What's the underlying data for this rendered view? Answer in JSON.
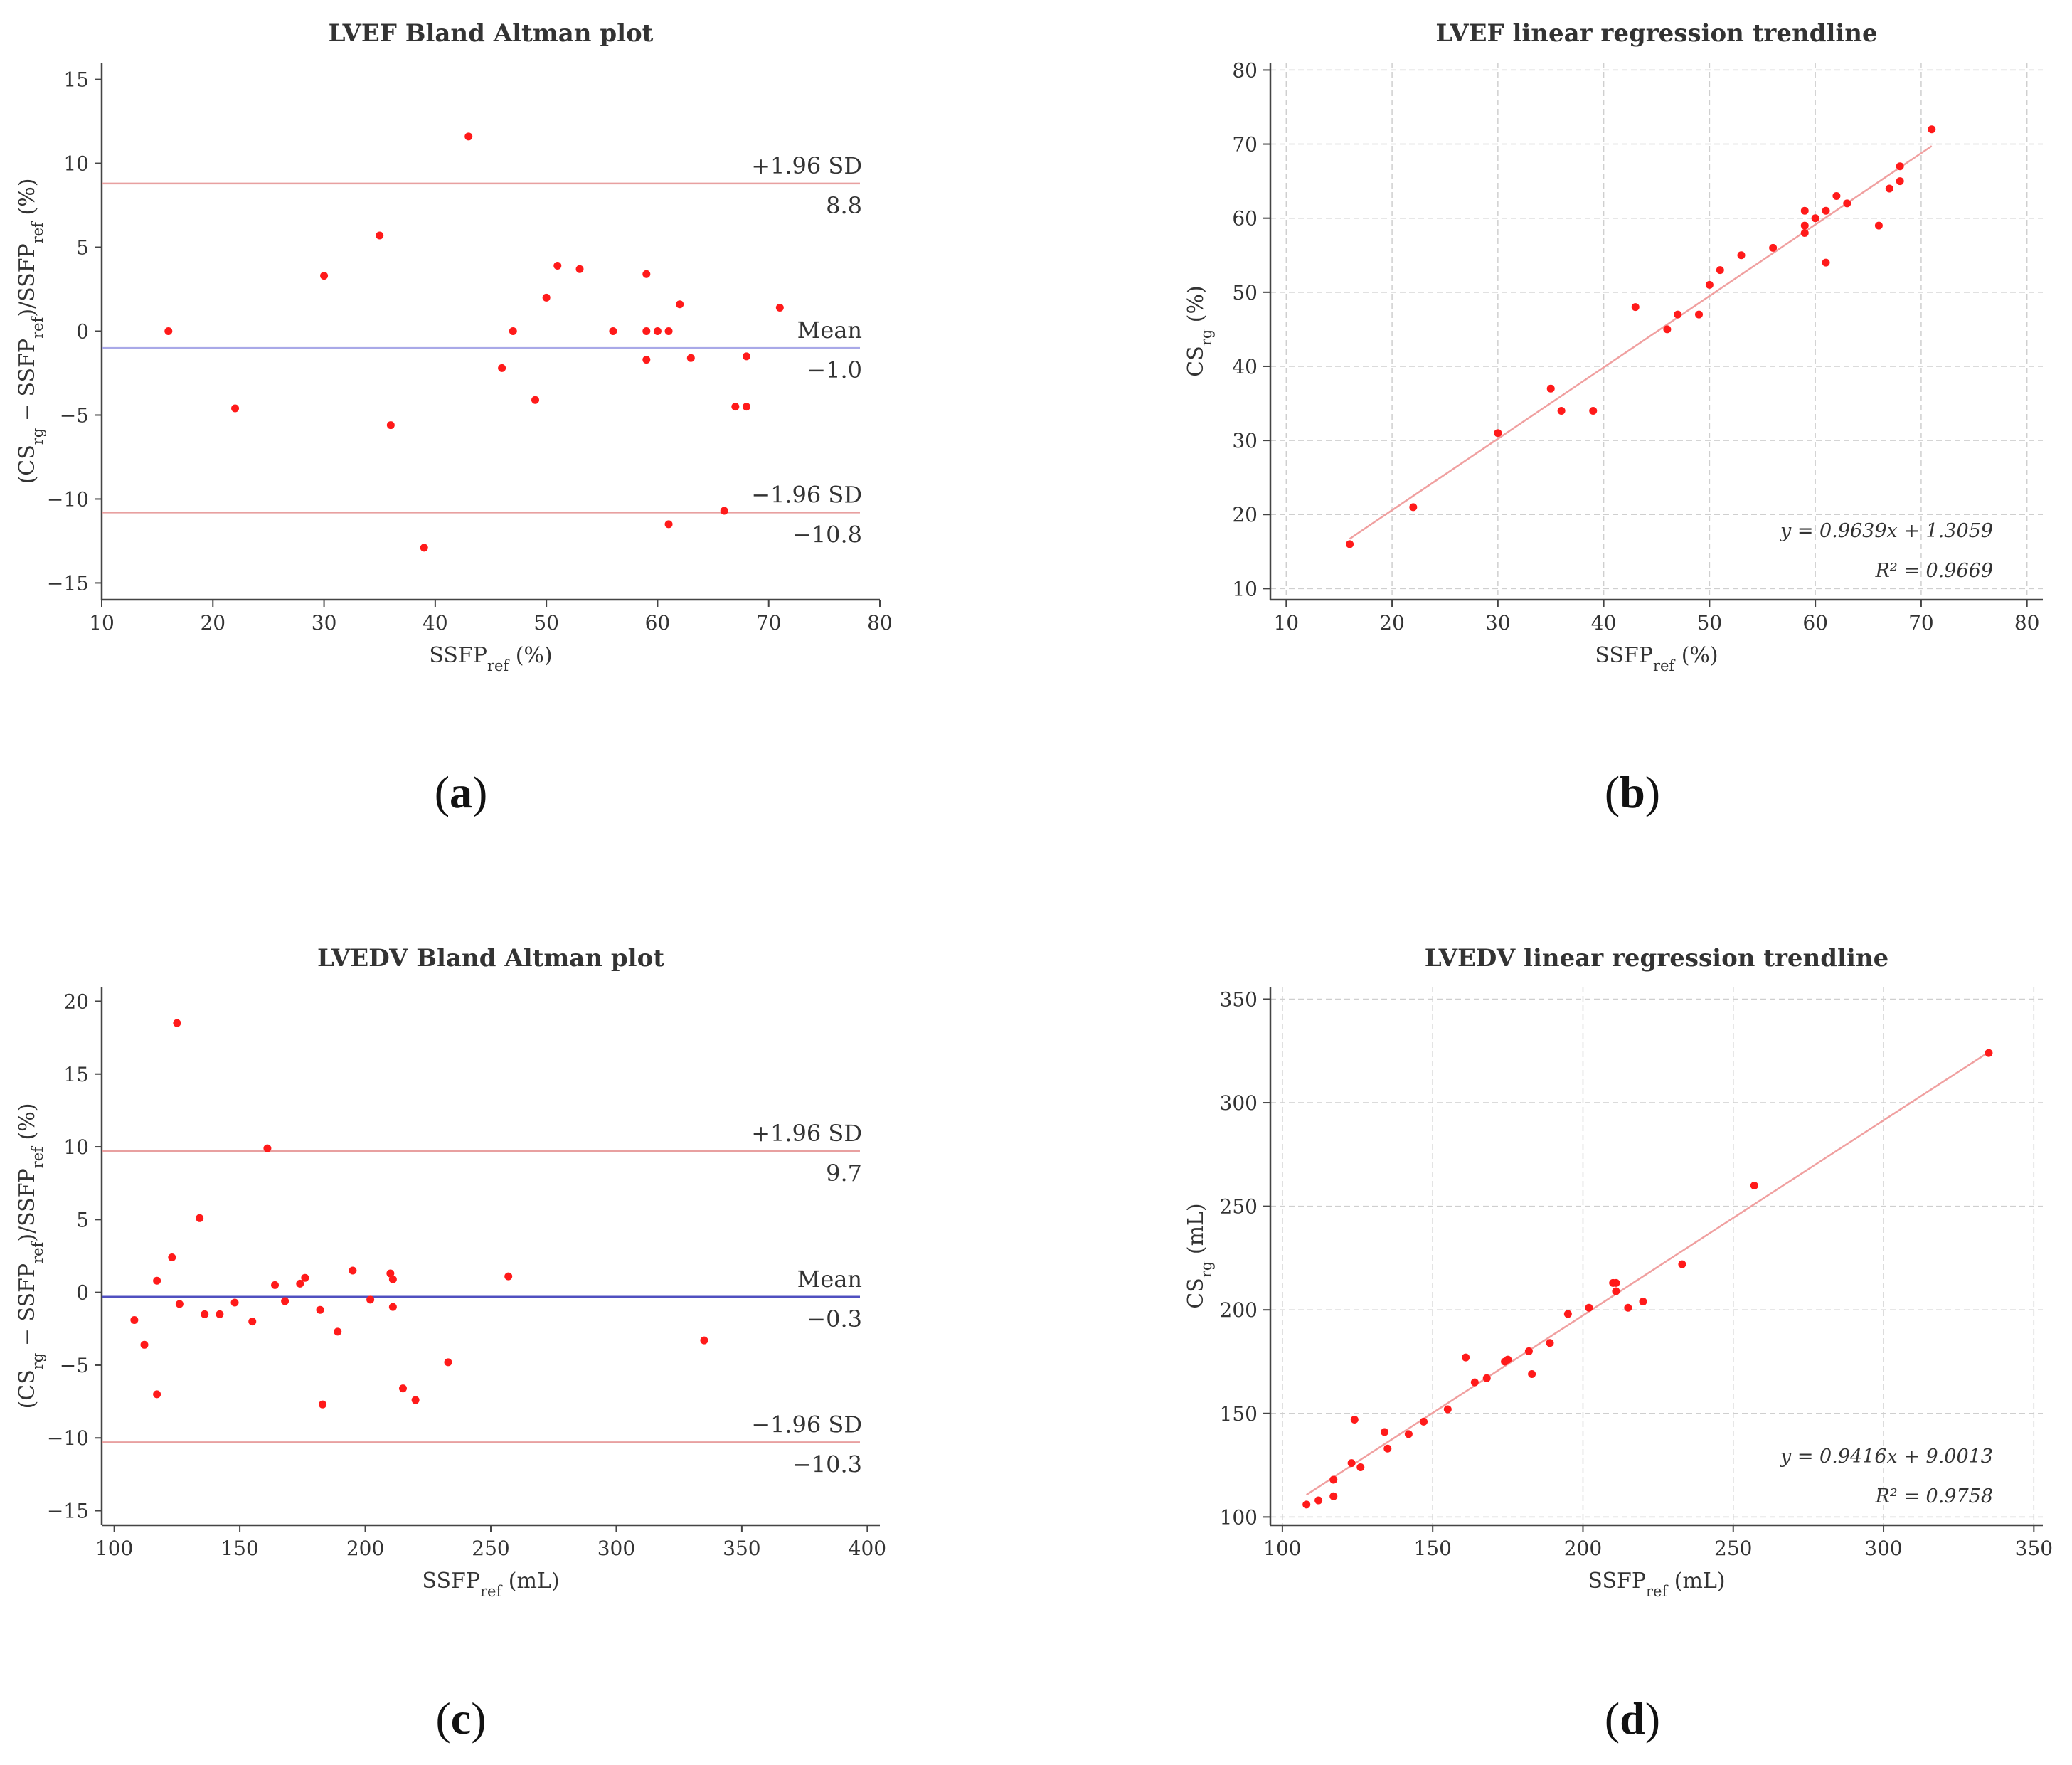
{
  "panel_labels": [
    "(a)",
    "(b)",
    "(c)",
    "(d)"
  ],
  "chart_data": [
    {
      "type": "scatter",
      "title": "LVEF Bland Altman plot",
      "xlabel": "SSFPref (%)",
      "ylabel": "(CSrg − SSFPref)/SSFPref (%)",
      "xlim": [
        10,
        80
      ],
      "ylim": [
        -16,
        16
      ],
      "xticks": [
        10,
        20,
        30,
        40,
        50,
        60,
        70,
        80
      ],
      "yticks": [
        -15,
        -10,
        -5,
        0,
        5,
        10,
        15
      ],
      "grid": false,
      "points": [
        [
          16,
          0
        ],
        [
          22,
          -4.6
        ],
        [
          30,
          3.3
        ],
        [
          35,
          5.7
        ],
        [
          36,
          -5.6
        ],
        [
          39,
          -12.9
        ],
        [
          43,
          11.6
        ],
        [
          46,
          -2.2
        ],
        [
          47,
          0
        ],
        [
          49,
          -4.1
        ],
        [
          50,
          2
        ],
        [
          51,
          3.9
        ],
        [
          53,
          3.7
        ],
        [
          56,
          0
        ],
        [
          59,
          3.4
        ],
        [
          59,
          0
        ],
        [
          59,
          -1.7
        ],
        [
          60,
          0
        ],
        [
          61,
          0
        ],
        [
          61,
          -11.5
        ],
        [
          62,
          1.6
        ],
        [
          63,
          -1.6
        ],
        [
          66,
          -10.7
        ],
        [
          67,
          -4.5
        ],
        [
          68,
          -4.5
        ],
        [
          68,
          -1.5
        ],
        [
          71,
          1.4
        ]
      ],
      "reference_lines": [
        {
          "label": "+1.96 SD",
          "value": 8.8,
          "value_text": "8.8",
          "color": "#e8a0a0"
        },
        {
          "label": "Mean",
          "value": -1.0,
          "value_text": "−1.0",
          "color": "#a9a9e8"
        },
        {
          "label": "−1.96 SD",
          "value": -10.8,
          "value_text": "−10.8",
          "color": "#e8a0a0"
        }
      ]
    },
    {
      "type": "scatter",
      "title": "LVEF linear regression trendline",
      "xlabel": "SSFPref (%)",
      "ylabel": "CSrg (%)",
      "xlim": [
        8.5,
        81.5
      ],
      "ylim": [
        8.5,
        81
      ],
      "xticks": [
        10,
        20,
        30,
        40,
        50,
        60,
        70,
        80
      ],
      "yticks": [
        10,
        20,
        30,
        40,
        50,
        60,
        70,
        80
      ],
      "grid": true,
      "points": [
        [
          16,
          16
        ],
        [
          22,
          21
        ],
        [
          30,
          31
        ],
        [
          35,
          37
        ],
        [
          36,
          34
        ],
        [
          39,
          34
        ],
        [
          43,
          48
        ],
        [
          46,
          45
        ],
        [
          47,
          47
        ],
        [
          49,
          47
        ],
        [
          50,
          51
        ],
        [
          51,
          53
        ],
        [
          53,
          55
        ],
        [
          56,
          56
        ],
        [
          59,
          61
        ],
        [
          59,
          59
        ],
        [
          59,
          58
        ],
        [
          60,
          60
        ],
        [
          61,
          61
        ],
        [
          61,
          54
        ],
        [
          62,
          63
        ],
        [
          63,
          62
        ],
        [
          66,
          59
        ],
        [
          67,
          64
        ],
        [
          68,
          67
        ],
        [
          68,
          65
        ],
        [
          71,
          72
        ]
      ],
      "trendline": {
        "slope": 0.9639,
        "intercept": 1.3059,
        "x_range": [
          16,
          71
        ],
        "color": "#f0a0a0"
      },
      "annotations": [
        "y = 0.9639x + 1.3059",
        "R² = 0.9669"
      ]
    },
    {
      "type": "scatter",
      "title": "LVEDV Bland Altman plot",
      "xlabel": "SSFPref (mL)",
      "ylabel": "(CSrg − SSFPref)/SSFPref (%)",
      "xlim": [
        95,
        405
      ],
      "ylim": [
        -16,
        21
      ],
      "xticks": [
        100,
        150,
        200,
        250,
        300,
        350,
        400
      ],
      "yticks": [
        -15,
        -10,
        -5,
        0,
        5,
        10,
        15,
        20
      ],
      "grid": false,
      "points": [
        [
          108,
          -1.9
        ],
        [
          112,
          -3.6
        ],
        [
          117,
          -7
        ],
        [
          117,
          0.8
        ],
        [
          123,
          2.4
        ],
        [
          125,
          18.5
        ],
        [
          126,
          -0.8
        ],
        [
          134,
          5.1
        ],
        [
          136,
          -1.5
        ],
        [
          142,
          -1.5
        ],
        [
          148,
          -0.7
        ],
        [
          155,
          -2
        ],
        [
          161,
          9.9
        ],
        [
          164,
          0.5
        ],
        [
          168,
          -0.6
        ],
        [
          174,
          0.6
        ],
        [
          176,
          1
        ],
        [
          182,
          -1.2
        ],
        [
          183,
          -7.7
        ],
        [
          189,
          -2.7
        ],
        [
          195,
          1.5
        ],
        [
          202,
          -0.5
        ],
        [
          210,
          1.3
        ],
        [
          211,
          0.9
        ],
        [
          211,
          -1
        ],
        [
          215,
          -6.6
        ],
        [
          220,
          -7.4
        ],
        [
          233,
          -4.8
        ],
        [
          257,
          1.1
        ],
        [
          335,
          -3.3
        ]
      ],
      "reference_lines": [
        {
          "label": "+1.96 SD",
          "value": 9.7,
          "value_text": "9.7",
          "color": "#e8a0a0"
        },
        {
          "label": "Mean",
          "value": -0.3,
          "value_text": "−0.3",
          "color": "#5050c0"
        },
        {
          "label": "−1.96 SD",
          "value": -10.3,
          "value_text": "−10.3",
          "color": "#e8a0a0"
        }
      ]
    },
    {
      "type": "scatter",
      "title": "LVEDV linear regression trendline",
      "xlabel": "SSFPref (mL)",
      "ylabel": "CSrg (mL)",
      "xlim": [
        96,
        353
      ],
      "ylim": [
        96,
        356
      ],
      "xticks": [
        100,
        150,
        200,
        250,
        300,
        350
      ],
      "yticks": [
        100,
        150,
        200,
        250,
        300,
        350
      ],
      "grid": true,
      "points": [
        [
          108,
          106
        ],
        [
          112,
          108
        ],
        [
          117,
          110
        ],
        [
          117,
          118
        ],
        [
          123,
          126
        ],
        [
          124,
          147
        ],
        [
          126,
          124
        ],
        [
          134,
          141
        ],
        [
          135,
          133
        ],
        [
          142,
          140
        ],
        [
          147,
          146
        ],
        [
          155,
          152
        ],
        [
          161,
          177
        ],
        [
          164,
          165
        ],
        [
          168,
          167
        ],
        [
          174,
          175
        ],
        [
          175,
          176
        ],
        [
          182,
          180
        ],
        [
          183,
          169
        ],
        [
          189,
          184
        ],
        [
          195,
          198
        ],
        [
          202,
          201
        ],
        [
          210,
          213
        ],
        [
          211,
          209
        ],
        [
          211,
          213
        ],
        [
          215,
          201
        ],
        [
          220,
          204
        ],
        [
          233,
          222
        ],
        [
          257,
          260
        ],
        [
          335,
          324
        ]
      ],
      "trendline": {
        "slope": 0.9416,
        "intercept": 9.0013,
        "x_range": [
          108,
          335
        ],
        "color": "#f0a0a0"
      },
      "annotations": [
        "y = 0.9416x + 9.0013",
        "R² = 0.9758"
      ]
    }
  ]
}
